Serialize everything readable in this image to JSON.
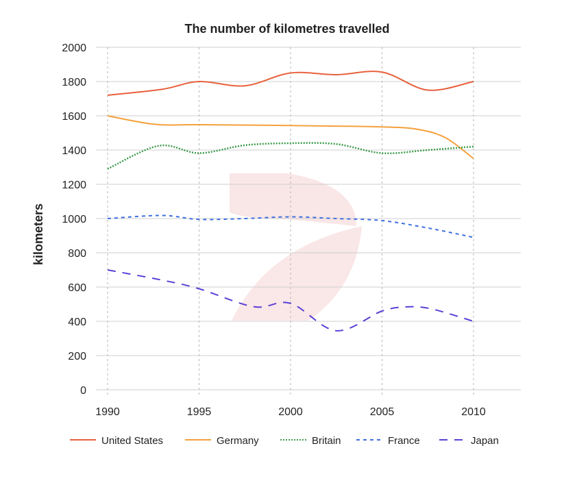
{
  "chart_data": {
    "type": "line",
    "title": "The number of kilometres travelled",
    "xlabel": "",
    "ylabel": "kilometers",
    "xlim": [
      1990,
      2012.5
    ],
    "ylim": [
      0,
      2000
    ],
    "x_ticks": [
      1990,
      1995,
      2000,
      2005,
      2010
    ],
    "y_ticks": [
      0,
      200,
      400,
      600,
      800,
      1000,
      1200,
      1400,
      1600,
      1800,
      2000
    ],
    "grid": "horizontal solid, vertical dotted",
    "legend_position": "bottom",
    "series": [
      {
        "name": "United States",
        "color": "#e8603c",
        "dash": "solid",
        "points": [
          [
            1990,
            1720
          ],
          [
            1993,
            1755
          ],
          [
            1995,
            1800
          ],
          [
            1997.5,
            1775
          ],
          [
            2000,
            1850
          ],
          [
            2002.5,
            1840
          ],
          [
            2005,
            1855
          ],
          [
            2007.5,
            1750
          ],
          [
            2010,
            1800
          ]
        ]
      },
      {
        "name": "Germany",
        "color": "#f5a03a",
        "dash": "solid",
        "points": [
          [
            1990,
            1600
          ],
          [
            1992.6,
            1550
          ],
          [
            1995,
            1548
          ],
          [
            2000,
            1543
          ],
          [
            2005,
            1535
          ],
          [
            2007,
            1520
          ],
          [
            2008.5,
            1470
          ],
          [
            2010,
            1350
          ]
        ]
      },
      {
        "name": "Britain",
        "color": "#3a9a4a",
        "dash": "dotted",
        "points": [
          [
            1990,
            1290
          ],
          [
            1992.8,
            1425
          ],
          [
            1995,
            1382
          ],
          [
            1997.5,
            1428
          ],
          [
            2000,
            1440
          ],
          [
            2002.5,
            1435
          ],
          [
            2005,
            1382
          ],
          [
            2007.5,
            1400
          ],
          [
            2010,
            1420
          ]
        ]
      },
      {
        "name": "France",
        "color": "#3d6fe0",
        "dash": "short",
        "points": [
          [
            1990,
            1000
          ],
          [
            1993,
            1018
          ],
          [
            1995,
            995
          ],
          [
            1997.5,
            1000
          ],
          [
            2000,
            1010
          ],
          [
            2002.5,
            1000
          ],
          [
            2005,
            988
          ],
          [
            2007.5,
            945
          ],
          [
            2010,
            890
          ]
        ]
      },
      {
        "name": "Japan",
        "color": "#5a3fd6",
        "dash": "long",
        "points": [
          [
            1990,
            700
          ],
          [
            1993,
            640
          ],
          [
            1995,
            590
          ],
          [
            1998,
            485
          ],
          [
            2000,
            505
          ],
          [
            2002.5,
            345
          ],
          [
            2005,
            460
          ],
          [
            2006.5,
            485
          ],
          [
            2007.8,
            470
          ],
          [
            2010,
            400
          ]
        ]
      }
    ]
  }
}
